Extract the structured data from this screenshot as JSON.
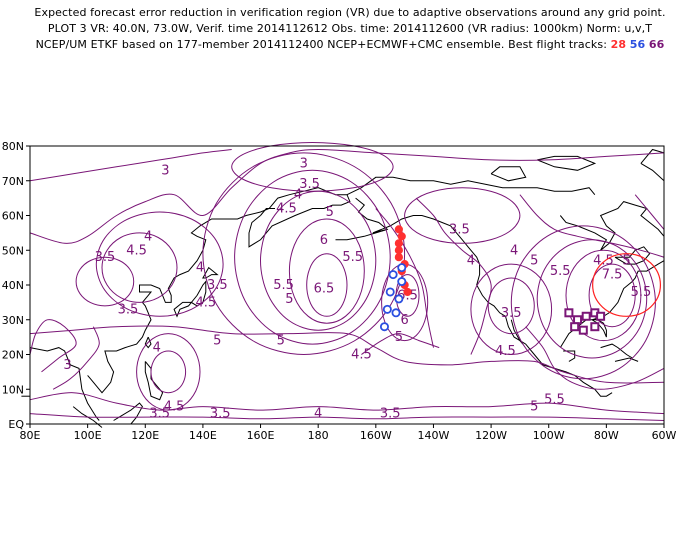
{
  "header": {
    "line1": "Expected forecast error reduction in verification region (VR) due to adaptive observations around any grid point.",
    "line2": "PLOT 3 VR: 40.0N, 73.0W, Verif. time 2014112612 Obs. time: 2014112600 (VR radius: 1000km) Norm: u,v,T",
    "line3_text": "NCEP/UM ETKF based on 177-member 2014112400 NCEP+ECMWF+CMC ensemble. Best flight tracks:",
    "track_labels": [
      "28",
      "56",
      "66"
    ],
    "track_colors": [
      "#ff3030",
      "#2b4fe0",
      "#7a1677"
    ]
  },
  "map": {
    "lon_labels": [
      "80E",
      "100E",
      "120E",
      "140E",
      "160E",
      "180",
      "160W",
      "140W",
      "120W",
      "100W",
      "80W",
      "60W"
    ],
    "lat_labels": [
      "EQ",
      "10N",
      "20N",
      "30N",
      "40N",
      "50N",
      "60N",
      "70N",
      "80N"
    ],
    "contour_color": "#7a1677",
    "coast_color": "#000000",
    "contour_labels": [
      {
        "text": "3",
        "lon": 127,
        "lat": 73
      },
      {
        "text": "3",
        "lon": 175,
        "lat": 75
      },
      {
        "text": "3.5",
        "lon": 177,
        "lat": 69
      },
      {
        "text": "4",
        "lon": 173,
        "lat": 66
      },
      {
        "text": "4.5",
        "lon": 169,
        "lat": 62
      },
      {
        "text": "5",
        "lon": 184,
        "lat": 61
      },
      {
        "text": "6",
        "lon": 182,
        "lat": 53
      },
      {
        "text": "5.5",
        "lon": 192,
        "lat": 48
      },
      {
        "text": "3.5",
        "lon": 106,
        "lat": 48
      },
      {
        "text": "4",
        "lon": 121,
        "lat": 54
      },
      {
        "text": "4.5",
        "lon": 117,
        "lat": 50
      },
      {
        "text": "3.5",
        "lon": 114,
        "lat": 33
      },
      {
        "text": "4",
        "lon": 139,
        "lat": 45
      },
      {
        "text": "3.5",
        "lon": 145,
        "lat": 40
      },
      {
        "text": "4.5",
        "lon": 141,
        "lat": 35
      },
      {
        "text": "5.5",
        "lon": 168,
        "lat": 40
      },
      {
        "text": "5",
        "lon": 170,
        "lat": 36
      },
      {
        "text": "6.5",
        "lon": 182,
        "lat": 39
      },
      {
        "text": "5",
        "lon": 145,
        "lat": 24
      },
      {
        "text": "5",
        "lon": 167,
        "lat": 24
      },
      {
        "text": "4",
        "lon": 124,
        "lat": 22
      },
      {
        "text": "3",
        "lon": 93,
        "lat": 17
      },
      {
        "text": "4.5",
        "lon": 130,
        "lat": 5
      },
      {
        "text": "3.5",
        "lon": 125,
        "lat": 3
      },
      {
        "text": "3.5",
        "lon": 146,
        "lat": 3
      },
      {
        "text": "4",
        "lon": 180,
        "lat": 3
      },
      {
        "text": "3.5",
        "lon": 205,
        "lat": 3
      },
      {
        "text": "4.5",
        "lon": 195,
        "lat": 20
      },
      {
        "text": "5",
        "lon": 208,
        "lat": 25
      },
      {
        "text": "6.5",
        "lon": 211,
        "lat": 37
      },
      {
        "text": "6",
        "lon": 210,
        "lat": 30
      },
      {
        "text": "3.5",
        "lon": 229,
        "lat": 56
      },
      {
        "text": "4",
        "lon": 233,
        "lat": 47
      },
      {
        "text": "4",
        "lon": 248,
        "lat": 50
      },
      {
        "text": "3.5",
        "lon": 247,
        "lat": 32
      },
      {
        "text": "4.5",
        "lon": 245,
        "lat": 21
      },
      {
        "text": "5",
        "lon": 255,
        "lat": 47
      },
      {
        "text": "5.5",
        "lon": 264,
        "lat": 44
      },
      {
        "text": "4.5",
        "lon": 279,
        "lat": 47
      },
      {
        "text": "5",
        "lon": 287,
        "lat": 47
      },
      {
        "text": "7.5",
        "lon": 282,
        "lat": 43
      },
      {
        "text": "5.5",
        "lon": 292,
        "lat": 38
      },
      {
        "text": "5.5",
        "lon": 262,
        "lat": 7
      },
      {
        "text": "5",
        "lon": 255,
        "lat": 5
      }
    ],
    "flight_tracks": [
      {
        "name": "28",
        "color": "#ff3030",
        "points": [
          [
            208,
            56
          ],
          [
            208,
            52
          ],
          [
            208,
            48
          ],
          [
            209,
            44
          ],
          [
            210,
            40
          ],
          [
            208,
            36
          ],
          [
            211,
            38
          ],
          [
            210,
            46
          ],
          [
            208,
            50
          ],
          [
            209,
            54
          ]
        ]
      },
      {
        "name": "56",
        "color": "#2b4fe0",
        "points": [
          [
            206,
            43
          ],
          [
            205,
            38
          ],
          [
            204,
            33
          ],
          [
            203,
            28
          ],
          [
            207,
            32
          ],
          [
            208,
            36
          ],
          [
            209,
            41
          ],
          [
            209,
            45
          ]
        ]
      },
      {
        "name": "66",
        "color": "#7a1677",
        "points": [
          [
            267,
            32
          ],
          [
            270,
            30
          ],
          [
            273,
            31
          ],
          [
            276,
            32
          ],
          [
            278,
            31
          ],
          [
            276,
            28
          ],
          [
            272,
            27
          ],
          [
            269,
            28
          ]
        ]
      }
    ],
    "verification_region": {
      "lat": 40.0,
      "lon": -73.0,
      "radius_km": 1000
    }
  }
}
